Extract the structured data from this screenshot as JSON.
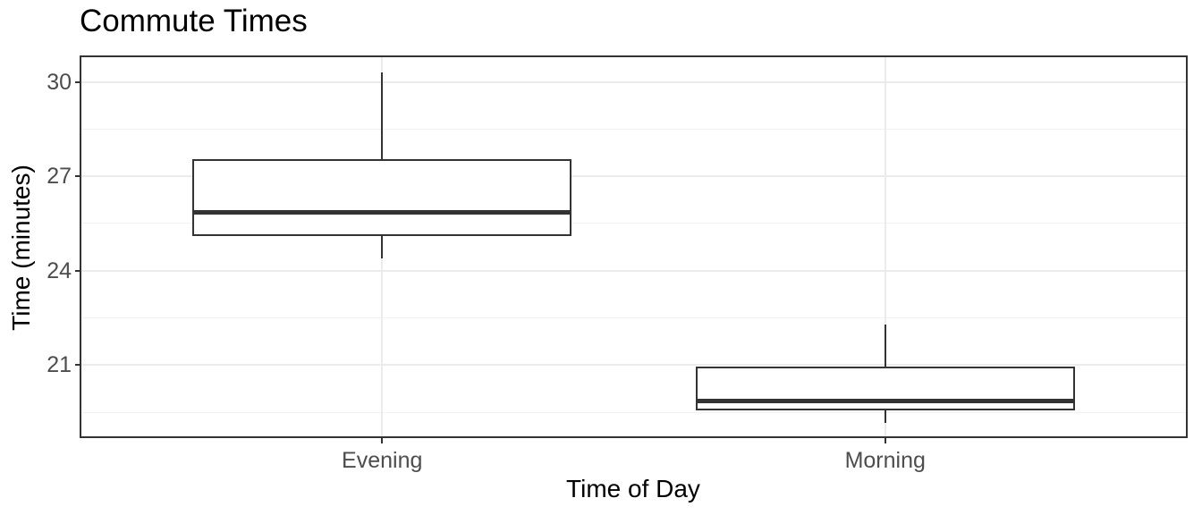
{
  "chart_data": {
    "type": "boxplot",
    "title": "Commute Times",
    "xlabel": "Time of Day",
    "ylabel": "Time (minutes)",
    "categories": [
      "Evening",
      "Morning"
    ],
    "series": [
      {
        "name": "Evening",
        "whisker_low": 24.4,
        "q1": 25.1,
        "median": 25.85,
        "q3": 27.55,
        "whisker_high": 30.3
      },
      {
        "name": "Morning",
        "whisker_low": 19.15,
        "q1": 19.55,
        "median": 19.85,
        "q3": 20.95,
        "whisker_high": 22.3
      }
    ],
    "y_axis": {
      "major_ticks": [
        30,
        27,
        24,
        21
      ],
      "minor_ticks": [
        28.5,
        25.5,
        22.5,
        19.5
      ],
      "range": [
        18.68,
        30.84
      ]
    },
    "x_axis": {
      "category_positions": [
        0.273,
        0.727
      ],
      "box_width_frac": 0.342
    },
    "grid": "horizontal major+minor, vertical major at categories",
    "legend": "none"
  },
  "colors": {
    "background": "#ffffff",
    "panel_border": "#333333",
    "box_stroke": "#333333",
    "grid_major": "#ebebeb",
    "grid_minor": "#f2f2f2",
    "tick_label": "#4d4d4d",
    "title_text": "#000000"
  }
}
